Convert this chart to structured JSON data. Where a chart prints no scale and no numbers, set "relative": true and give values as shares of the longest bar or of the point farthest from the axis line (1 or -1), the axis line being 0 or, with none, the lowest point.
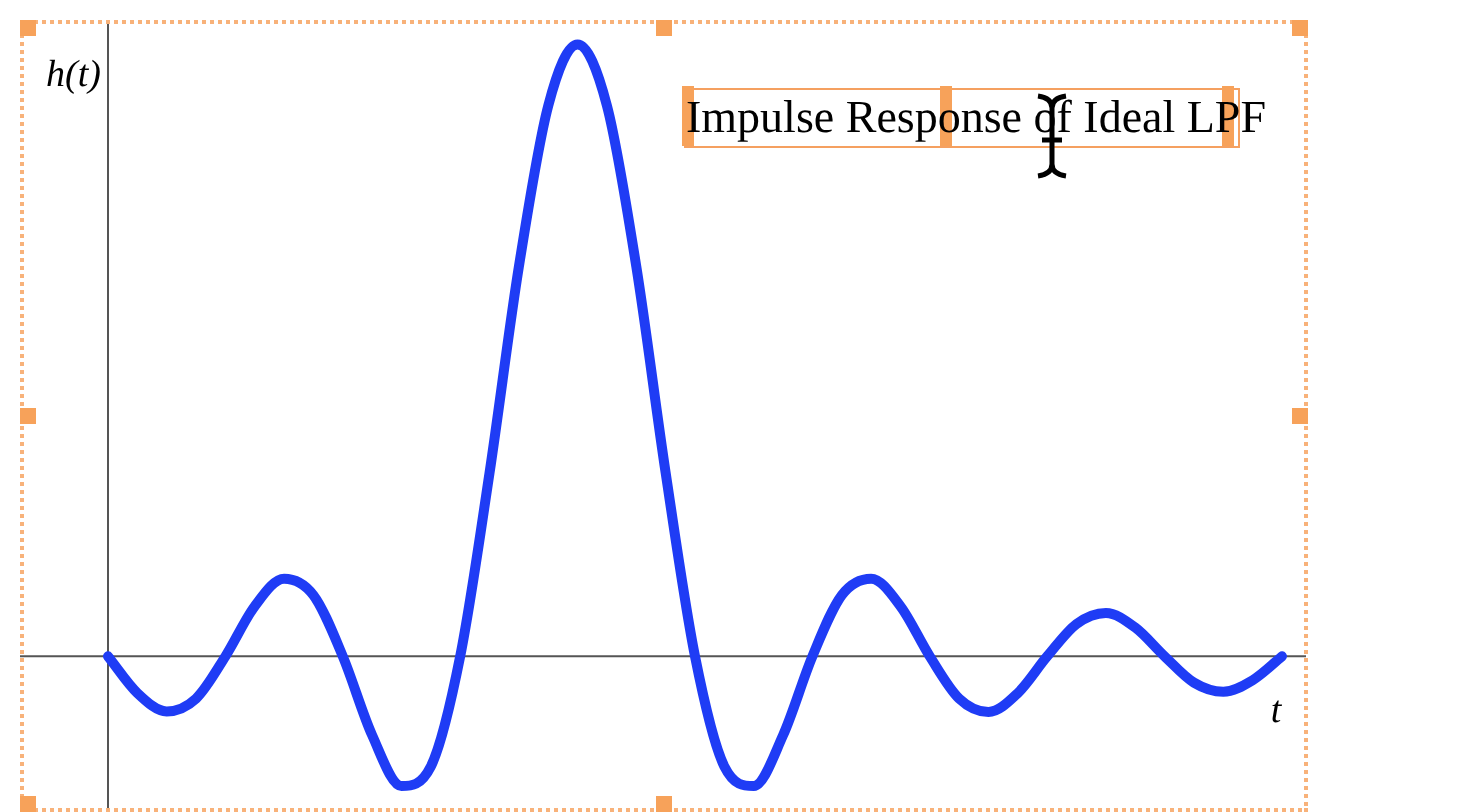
{
  "chart_data": {
    "type": "line",
    "title": "Impulse Response of Ideal LPF",
    "xlabel": "t",
    "ylabel": "h(t)",
    "relative": true,
    "grid": false,
    "legend": false,
    "marker": "none",
    "line_style": "solid",
    "categories": [
      null,
      null,
      null,
      null,
      null,
      null,
      null,
      null,
      null,
      null,
      null,
      null,
      null,
      null,
      null,
      null,
      null,
      null,
      null,
      null,
      null,
      null,
      null,
      null,
      null,
      null,
      null,
      null,
      null,
      null,
      null,
      null,
      null,
      null,
      null,
      null,
      null,
      null,
      null,
      null,
      null
    ],
    "series": [
      {
        "color": "#1f3cf5",
        "values": [
          0,
          -0.06,
          -0.09,
          -0.069,
          0,
          0.082,
          0.127,
          0.1,
          0,
          -0.129,
          -0.212,
          -0.18,
          0,
          0.3,
          0.637,
          0.9,
          1,
          0.9,
          0.637,
          0.3,
          0,
          -0.18,
          -0.212,
          -0.129,
          0,
          0.1,
          0.127,
          0.082,
          0,
          -0.069,
          -0.091,
          -0.06,
          0,
          0.053,
          0.071,
          0.047,
          0,
          -0.043,
          -0.058,
          -0.039,
          0
        ]
      }
    ]
  }
}
